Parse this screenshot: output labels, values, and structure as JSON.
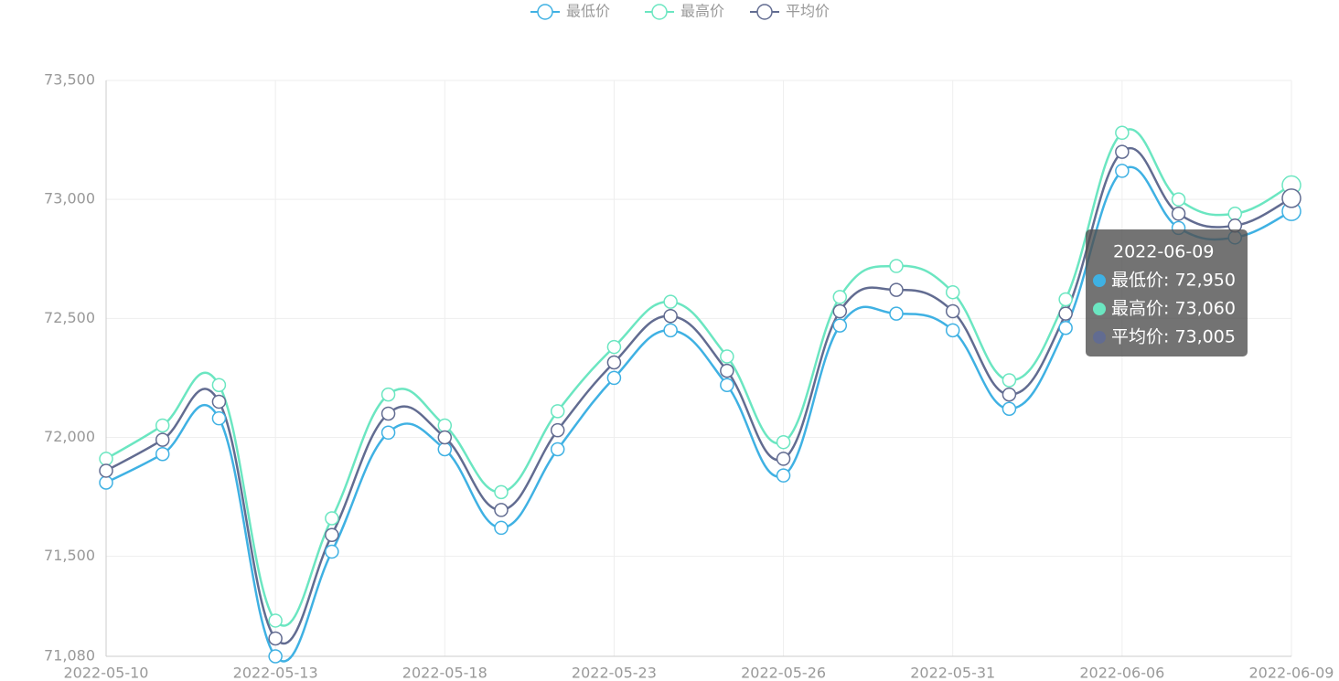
{
  "chart_data": {
    "type": "line",
    "categories": [
      "2022-05-10",
      null,
      null,
      "2022-05-13",
      null,
      null,
      "2022-05-18",
      null,
      null,
      "2022-05-23",
      null,
      null,
      "2022-05-26",
      null,
      null,
      "2022-05-31",
      null,
      null,
      "2022-06-06",
      null,
      null,
      "2022-06-09"
    ],
    "series": [
      {
        "name": "最低价",
        "color": "#3fb1e3",
        "values": [
          71810,
          71930,
          72080,
          71080,
          71520,
          72020,
          71950,
          71620,
          71950,
          72250,
          72450,
          72220,
          71840,
          72470,
          72520,
          72450,
          72120,
          72460,
          73120,
          72880,
          72840,
          72950
        ]
      },
      {
        "name": "最高价",
        "color": "#6be6c1",
        "values": [
          71910,
          72050,
          72220,
          71230,
          71660,
          72180,
          72050,
          71770,
          72110,
          72380,
          72570,
          72340,
          71980,
          72590,
          72720,
          72610,
          72240,
          72580,
          73280,
          73000,
          72940,
          73060
        ]
      },
      {
        "name": "平均价",
        "color": "#626c91",
        "values": [
          71860,
          71990,
          72150,
          71155,
          71590,
          72100,
          72000,
          71695,
          72030,
          72315,
          72510,
          72280,
          71910,
          72530,
          72620,
          72530,
          72180,
          72520,
          73200,
          72940,
          72890,
          73005
        ]
      }
    ],
    "ylim": [
      71080,
      73500
    ],
    "yticks": [
      {
        "value": 71080,
        "label": "71,080"
      },
      {
        "value": 71500,
        "label": "71,500"
      },
      {
        "value": 72000,
        "label": "72,000"
      },
      {
        "value": 72500,
        "label": "72,500"
      },
      {
        "value": 73000,
        "label": "73,000"
      },
      {
        "value": 73500,
        "label": "73,500"
      }
    ],
    "grid": true,
    "legend": "top",
    "smooth": true,
    "tooltip": {
      "index": 21,
      "lines": [
        "最低价: 72,950",
        "最高价: 73,060",
        "平均价: 73,005"
      ]
    }
  }
}
